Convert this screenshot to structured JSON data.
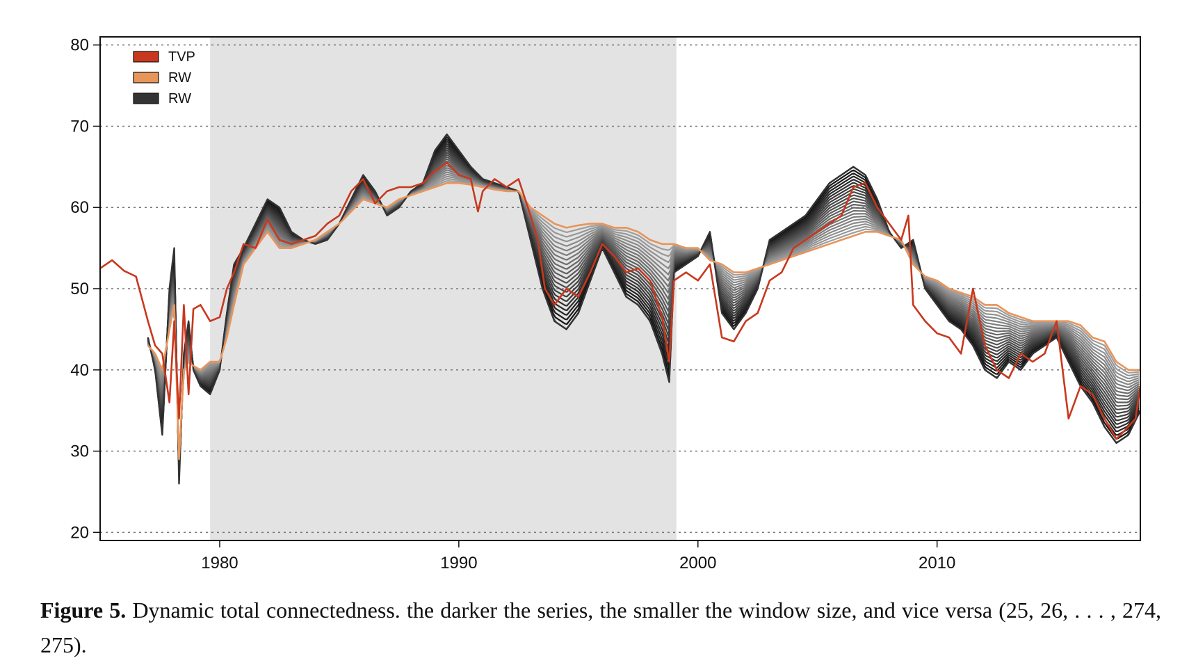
{
  "figure": {
    "caption_label": "Figure 5.",
    "caption_text": "Dynamic total connectedness.  the darker the series, the smaller the window size, and vice versa (25, 26, . . . , 274, 275)."
  },
  "chart_data": {
    "type": "line",
    "title": "",
    "xlabel": "",
    "ylabel": "",
    "xlim": [
      1975.0,
      2018.5
    ],
    "ylim": [
      19,
      81
    ],
    "x_ticks": [
      1980,
      1990,
      2000,
      2010
    ],
    "y_ticks": [
      20,
      30,
      40,
      50,
      60,
      70,
      80
    ],
    "grid": "horizontal dotted",
    "legend_position": "top-left",
    "shaded_region": {
      "x_start": 1979.6,
      "x_end": 1999.1,
      "color": "#e3e3e3"
    },
    "legend": [
      {
        "label": "TVP",
        "color": "#c8381e"
      },
      {
        "label": "RW",
        "color": "#e8955a"
      },
      {
        "label": "RW",
        "color": "#333333"
      }
    ],
    "series": [
      {
        "name": "TVP",
        "color": "#c8381e",
        "x": [
          1975.0,
          1975.5,
          1976.0,
          1976.5,
          1977.0,
          1977.3,
          1977.6,
          1977.9,
          1978.1,
          1978.3,
          1978.5,
          1978.7,
          1978.9,
          1979.2,
          1979.6,
          1980.0,
          1980.3,
          1980.6,
          1981.0,
          1981.5,
          1982.0,
          1982.5,
          1983.0,
          1983.5,
          1984.0,
          1984.5,
          1985.0,
          1985.5,
          1986.0,
          1986.5,
          1987.0,
          1987.5,
          1988.0,
          1988.5,
          1989.0,
          1989.5,
          1990.0,
          1990.5,
          1990.8,
          1991.0,
          1991.5,
          1992.0,
          1992.5,
          1993.0,
          1993.3,
          1993.6,
          1994.0,
          1994.5,
          1995.0,
          1995.5,
          1996.0,
          1996.5,
          1997.0,
          1997.5,
          1998.0,
          1998.5,
          1998.8,
          1999.0,
          1999.5,
          2000.0,
          2000.5,
          2001.0,
          2001.5,
          2002.0,
          2002.5,
          2003.0,
          2003.5,
          2004.0,
          2004.5,
          2005.0,
          2005.5,
          2006.0,
          2006.5,
          2007.0,
          2007.5,
          2008.0,
          2008.5,
          2008.8,
          2009.0,
          2009.5,
          2010.0,
          2010.5,
          2011.0,
          2011.5,
          2012.0,
          2012.5,
          2013.0,
          2013.5,
          2014.0,
          2014.5,
          2015.0,
          2015.5,
          2016.0,
          2016.5,
          2017.0,
          2017.5,
          2018.0,
          2018.3,
          2018.5
        ],
        "y": [
          52.5,
          53.5,
          52.2,
          51.5,
          46.0,
          43.0,
          42.0,
          36.0,
          46.0,
          34.0,
          48.0,
          37.0,
          47.5,
          48.0,
          46.0,
          46.5,
          50.0,
          52.0,
          55.5,
          55.0,
          58.5,
          56.0,
          55.5,
          56.0,
          56.5,
          58.0,
          59.0,
          62.0,
          63.5,
          60.5,
          62.0,
          62.5,
          62.5,
          63.0,
          64.5,
          65.5,
          64.0,
          63.5,
          59.5,
          62.0,
          63.5,
          62.5,
          63.5,
          59.0,
          56.0,
          50.0,
          48.0,
          50.0,
          49.0,
          52.0,
          55.5,
          54.0,
          52.0,
          52.5,
          51.0,
          46.5,
          41.0,
          51.0,
          52.0,
          51.0,
          53.0,
          44.0,
          43.5,
          46.0,
          47.0,
          51.0,
          52.0,
          55.0,
          56.0,
          57.0,
          58.0,
          59.0,
          62.5,
          63.0,
          60.0,
          58.0,
          56.0,
          59.0,
          48.0,
          46.0,
          44.5,
          44.0,
          42.0,
          50.0,
          43.0,
          40.0,
          39.0,
          42.0,
          41.0,
          42.0,
          46.0,
          34.0,
          38.0,
          37.0,
          34.0,
          31.5,
          33.0,
          34.0,
          38.0
        ]
      },
      {
        "name": "RW",
        "color": "#e8955a",
        "x": [
          1977.0,
          1977.3,
          1977.6,
          1977.9,
          1978.1,
          1978.3,
          1978.5,
          1978.7,
          1978.9,
          1979.2,
          1979.6,
          1980.0,
          1980.3,
          1980.6,
          1981.0,
          1981.5,
          1982.0,
          1982.5,
          1983.0,
          1983.5,
          1984.0,
          1984.5,
          1985.0,
          1985.5,
          1986.0,
          1986.5,
          1987.0,
          1987.5,
          1988.0,
          1988.5,
          1989.0,
          1989.5,
          1990.0,
          1990.5,
          1991.0,
          1991.5,
          1992.0,
          1992.5,
          1993.0,
          1993.5,
          1994.0,
          1994.5,
          1995.0,
          1995.5,
          1996.0,
          1996.5,
          1997.0,
          1997.5,
          1998.0,
          1998.5,
          1999.0,
          1999.5,
          2000.0,
          2000.5,
          2001.0,
          2001.5,
          2002.0,
          2002.5,
          2003.0,
          2003.5,
          2004.0,
          2004.5,
          2005.0,
          2005.5,
          2006.0,
          2006.5,
          2007.0,
          2007.5,
          2008.0,
          2008.5,
          2009.0,
          2009.5,
          2010.0,
          2010.5,
          2011.0,
          2011.5,
          2012.0,
          2012.5,
          2013.0,
          2013.5,
          2014.0,
          2014.5,
          2015.0,
          2015.5,
          2016.0,
          2016.5,
          2017.0,
          2017.5,
          2018.0,
          2018.5
        ],
        "y": [
          43.0,
          42.0,
          40.0,
          45.0,
          48.0,
          29.0,
          40.0,
          41.0,
          40.5,
          40.0,
          41.0,
          41.0,
          44.0,
          48.0,
          53.0,
          55.0,
          57.0,
          55.0,
          55.0,
          55.5,
          56.0,
          57.0,
          58.0,
          59.5,
          61.0,
          60.5,
          60.0,
          61.0,
          61.5,
          62.0,
          62.5,
          63.0,
          63.0,
          62.8,
          62.5,
          62.2,
          62.0,
          62.0,
          60.0,
          59.0,
          58.0,
          57.5,
          57.8,
          58.0,
          58.0,
          57.5,
          57.5,
          57.0,
          56.0,
          55.5,
          55.5,
          55.0,
          55.0,
          53.5,
          53.0,
          52.0,
          52.0,
          52.5,
          53.0,
          53.5,
          54.0,
          54.5,
          55.0,
          55.5,
          56.0,
          56.5,
          57.0,
          57.0,
          56.5,
          56.0,
          53.0,
          51.5,
          51.0,
          50.0,
          49.5,
          49.0,
          48.0,
          48.0,
          47.0,
          46.5,
          46.0,
          46.0,
          46.0,
          46.0,
          45.5,
          44.0,
          43.5,
          41.0,
          40.0,
          40.0
        ]
      },
      {
        "name": "RW",
        "color": "#333333",
        "x": [
          1977.0,
          1977.3,
          1977.6,
          1977.9,
          1978.1,
          1978.3,
          1978.5,
          1978.7,
          1978.9,
          1979.2,
          1979.6,
          1980.0,
          1980.3,
          1980.6,
          1981.0,
          1981.5,
          1982.0,
          1982.5,
          1983.0,
          1983.5,
          1984.0,
          1984.5,
          1985.0,
          1985.5,
          1986.0,
          1986.5,
          1987.0,
          1987.5,
          1988.0,
          1988.5,
          1989.0,
          1989.5,
          1990.0,
          1990.5,
          1991.0,
          1991.5,
          1992.0,
          1992.5,
          1993.0,
          1993.5,
          1994.0,
          1994.5,
          1995.0,
          1995.5,
          1996.0,
          1996.5,
          1997.0,
          1997.5,
          1998.0,
          1998.5,
          1998.8,
          1999.0,
          1999.5,
          2000.0,
          2000.5,
          2001.0,
          2001.5,
          2002.0,
          2002.5,
          2003.0,
          2003.5,
          2004.0,
          2004.5,
          2005.0,
          2005.5,
          2006.0,
          2006.5,
          2007.0,
          2007.5,
          2008.0,
          2008.5,
          2009.0,
          2009.5,
          2010.0,
          2010.5,
          2011.0,
          2011.5,
          2012.0,
          2012.5,
          2013.0,
          2013.5,
          2014.0,
          2014.5,
          2015.0,
          2015.5,
          2016.0,
          2016.5,
          2017.0,
          2017.5,
          2018.0,
          2018.5
        ],
        "y": [
          44.0,
          40.0,
          32.0,
          50.0,
          55.0,
          26.0,
          42.0,
          46.0,
          40.0,
          38.0,
          37.0,
          40.0,
          47.0,
          53.0,
          55.0,
          58.0,
          61.0,
          60.0,
          57.0,
          56.0,
          55.5,
          56.0,
          58.0,
          61.0,
          64.0,
          62.0,
          59.0,
          60.0,
          62.0,
          63.0,
          67.0,
          69.0,
          67.0,
          65.0,
          63.5,
          63.0,
          62.5,
          62.0,
          56.0,
          50.0,
          46.0,
          45.0,
          47.0,
          51.0,
          55.0,
          52.0,
          49.0,
          48.0,
          46.0,
          42.0,
          38.5,
          52.0,
          53.0,
          54.0,
          57.0,
          47.0,
          45.0,
          47.0,
          50.0,
          56.0,
          57.0,
          58.0,
          59.0,
          61.0,
          63.0,
          64.0,
          65.0,
          64.0,
          61.0,
          57.0,
          55.0,
          56.0,
          50.0,
          48.0,
          46.0,
          45.0,
          43.0,
          40.0,
          39.0,
          41.0,
          40.0,
          42.0,
          43.0,
          44.0,
          41.0,
          38.0,
          36.0,
          33.0,
          31.0,
          32.0,
          35.0
        ]
      }
    ]
  }
}
